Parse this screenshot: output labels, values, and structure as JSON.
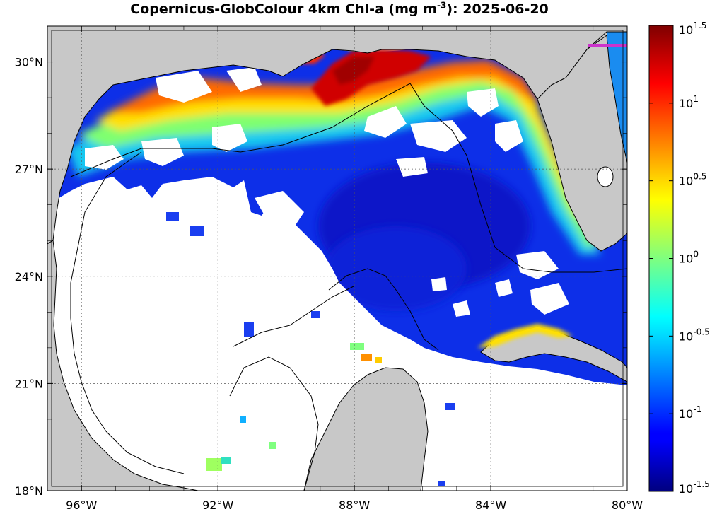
{
  "title": {
    "prefix": "Copernicus-GlobColour 4km Chl-a (mg m",
    "superscript": "-3",
    "suffix": "): 2025-06-20"
  },
  "map": {
    "projection": "equirectangular",
    "lon_range": [
      -97.0,
      -80.0
    ],
    "lat_range": [
      18.0,
      31.0
    ],
    "grid": true,
    "land_color": "#c8c8c8",
    "no_data_color": "#ffffff",
    "boundary_line_color": "#000000",
    "track_color": "#cc33cc",
    "lon_ticks": [
      {
        "value": -96,
        "label": "96°W"
      },
      {
        "value": -92,
        "label": "92°W"
      },
      {
        "value": -88,
        "label": "88°W"
      },
      {
        "value": -84,
        "label": "84°W"
      },
      {
        "value": -80,
        "label": "80°W"
      }
    ],
    "lat_ticks": [
      {
        "value": 30,
        "label": "30°N"
      },
      {
        "value": 27,
        "label": "27°N"
      },
      {
        "value": 24,
        "label": "24°N"
      },
      {
        "value": 21,
        "label": "21°N"
      },
      {
        "value": 18,
        "label": "18°N"
      }
    ]
  },
  "colorbar": {
    "scale": "log10",
    "range": [
      -1.5,
      1.5
    ],
    "colormap": "jet",
    "ticks": [
      {
        "value": 1.5,
        "base": "10",
        "exp": "1.5"
      },
      {
        "value": 1.0,
        "base": "10",
        "exp": "1"
      },
      {
        "value": 0.5,
        "base": "10",
        "exp": "0.5"
      },
      {
        "value": 0.0,
        "base": "10",
        "exp": "0"
      },
      {
        "value": -0.5,
        "base": "10",
        "exp": "-0.5"
      },
      {
        "value": -1.0,
        "base": "10",
        "exp": "-1"
      },
      {
        "value": -1.5,
        "base": "10",
        "exp": "-1.5"
      }
    ]
  }
}
